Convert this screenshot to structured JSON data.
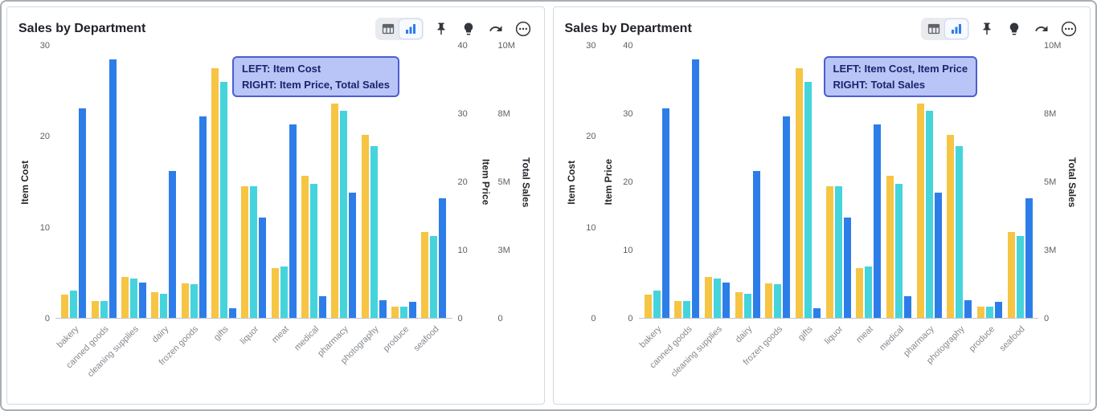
{
  "colors": {
    "item_cost": "#f6c544",
    "item_price": "#45d4dc",
    "total_sales": "#2d7de9",
    "icon_gray": "#5f6368",
    "icon_dark": "#33373c",
    "selected_icon": "#2d7de9",
    "annotation_bg": "#b9c5f6",
    "annotation_border": "#4a5ed2",
    "annotation_text": "#18256e"
  },
  "toolbar_icons": [
    "table-view-icon",
    "bar-chart-icon",
    "pin-icon",
    "lightbulb-icon",
    "share-icon",
    "more-icon"
  ],
  "chart_data": [
    {
      "type": "bar",
      "title": "Sales by Department",
      "annotation": {
        "line1": "LEFT: Item Cost",
        "line2": "RIGHT: Item Price, Total Sales"
      },
      "categories": [
        "bakery",
        "canned goods",
        "cleaning supplies",
        "dairy",
        "frozen goods",
        "gifts",
        "liquor",
        "meat",
        "medical",
        "pharmacy",
        "photography",
        "produce",
        "seafood"
      ],
      "axes": [
        {
          "title": "Item Cost",
          "side": "left",
          "min": 0,
          "max": 30,
          "ticks": [
            "0",
            "10",
            "20",
            "30"
          ]
        },
        {
          "title": "Item Price",
          "side": "right",
          "min": 0,
          "max": 40,
          "ticks": [
            "0",
            "10",
            "20",
            "30",
            "40"
          ]
        },
        {
          "title": "Total Sales",
          "side": "right",
          "min": 0,
          "max": 10000000,
          "ticks": [
            "0",
            "3M",
            "5M",
            "8M",
            "10M"
          ]
        }
      ],
      "series": [
        {
          "name": "Item Cost",
          "axis": "Item Cost",
          "color": "item_cost",
          "values": [
            2.6,
            1.9,
            4.5,
            2.8,
            3.8,
            27.5,
            14.5,
            5.5,
            15.7,
            23.6,
            20.2,
            1.2,
            9.5
          ]
        },
        {
          "name": "Item Price",
          "axis": "Item Price",
          "color": "item_price",
          "values": [
            4.0,
            2.5,
            5.8,
            3.5,
            4.9,
            34.7,
            19.3,
            7.5,
            19.7,
            30.4,
            25.3,
            1.7,
            12.0
          ]
        },
        {
          "name": "Total Sales",
          "axis": "Total Sales",
          "color": "total_sales",
          "values": [
            7700000,
            9500000,
            1300000,
            5400000,
            7400000,
            350000,
            3700000,
            7100000,
            800000,
            4600000,
            650000,
            600000,
            4400000
          ]
        }
      ]
    },
    {
      "type": "bar",
      "title": "Sales by Department",
      "annotation": {
        "line1": "LEFT: Item Cost, Item Price",
        "line2": "RIGHT: Total Sales"
      },
      "categories": [
        "bakery",
        "canned goods",
        "cleaning supplies",
        "dairy",
        "frozen goods",
        "gifts",
        "liquor",
        "meat",
        "medical",
        "pharmacy",
        "photography",
        "produce",
        "seafood"
      ],
      "axes": [
        {
          "title": "Item Cost",
          "side": "left",
          "min": 0,
          "max": 30,
          "ticks": [
            "0",
            "10",
            "20",
            "30"
          ]
        },
        {
          "title": "Item Price",
          "side": "left",
          "min": 0,
          "max": 40,
          "ticks": [
            "0",
            "10",
            "20",
            "30",
            "40"
          ]
        },
        {
          "title": "Total Sales",
          "side": "right",
          "min": 0,
          "max": 10000000,
          "ticks": [
            "0",
            "3M",
            "5M",
            "8M",
            "10M"
          ]
        }
      ],
      "series": [
        {
          "name": "Item Cost",
          "axis": "Item Cost",
          "color": "item_cost",
          "values": [
            2.6,
            1.9,
            4.5,
            2.8,
            3.8,
            27.5,
            14.5,
            5.5,
            15.7,
            23.6,
            20.2,
            1.2,
            9.5
          ]
        },
        {
          "name": "Item Price",
          "axis": "Item Price",
          "color": "item_price",
          "values": [
            4.0,
            2.5,
            5.8,
            3.5,
            4.9,
            34.7,
            19.3,
            7.5,
            19.7,
            30.4,
            25.3,
            1.7,
            12.0
          ]
        },
        {
          "name": "Total Sales",
          "axis": "Total Sales",
          "color": "total_sales",
          "values": [
            7700000,
            9500000,
            1300000,
            5400000,
            7400000,
            350000,
            3700000,
            7100000,
            800000,
            4600000,
            650000,
            600000,
            4400000
          ]
        }
      ]
    }
  ]
}
